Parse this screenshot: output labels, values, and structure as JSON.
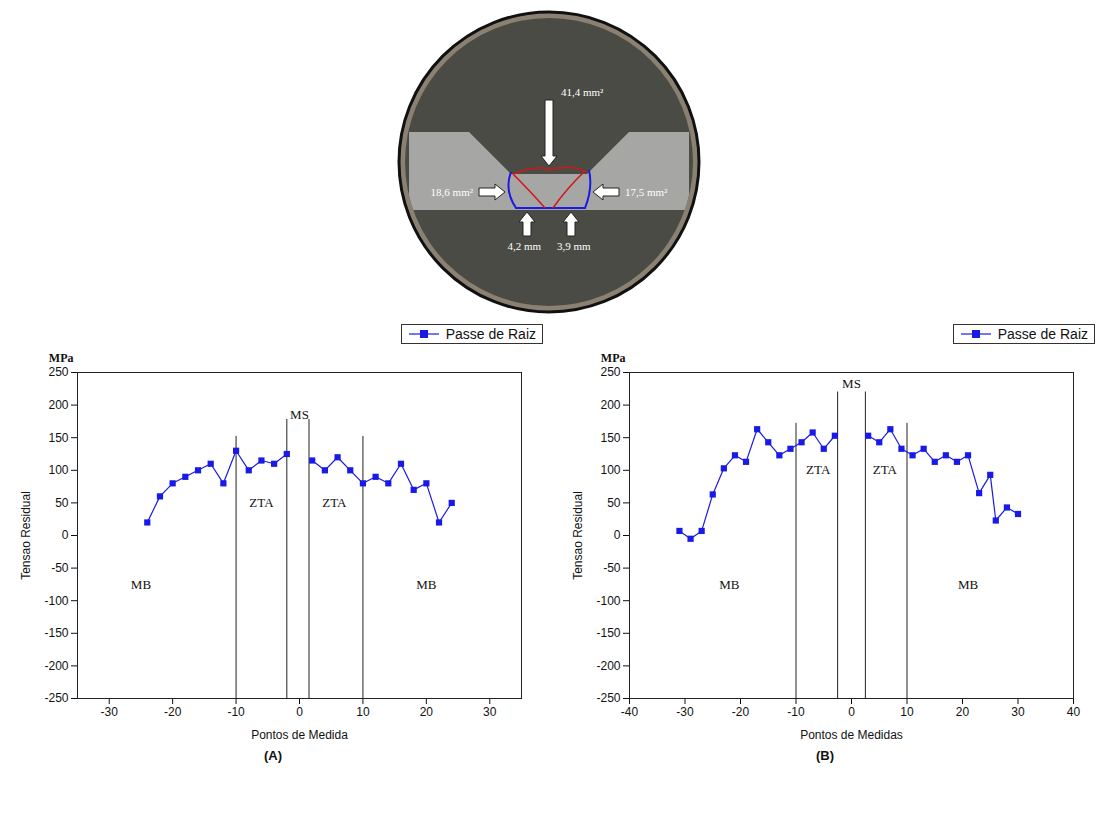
{
  "macrograph": {
    "top": "41,4 mm²",
    "left": "18,6 mm²",
    "right": "17,5 mm²",
    "bottom_left": "4,2 mm",
    "bottom_right": "3,9 mm"
  },
  "chart_data": [
    {
      "type": "line",
      "caption": "(A)",
      "x_label": "Pontos de Medida",
      "y_label": "Tensao Residual",
      "y_unit": "MPa",
      "xlim": [
        -35,
        35
      ],
      "xticks": [
        -30,
        -20,
        -10,
        0,
        10,
        20,
        30
      ],
      "ylim": [
        -250,
        250
      ],
      "yticks": [
        -250,
        -200,
        -150,
        -100,
        -50,
        0,
        50,
        100,
        150,
        200,
        250
      ],
      "grid": false,
      "legend": "top-right",
      "x": [
        -24,
        -22,
        -20,
        -18,
        -16,
        -14,
        -12,
        -10,
        -8,
        -6,
        -4,
        -2,
        0,
        2,
        4,
        6,
        8,
        10,
        12,
        14,
        16,
        18,
        20,
        22,
        24
      ],
      "series": [
        {
          "name": "Passe de Raiz",
          "color": "#1a1ae6",
          "marker": "square",
          "line_style": "solid",
          "values": [
            20,
            60,
            80,
            90,
            100,
            110,
            80,
            130,
            100,
            115,
            110,
            125,
            null,
            115,
            100,
            120,
            100,
            80,
            90,
            80,
            110,
            70,
            80,
            20,
            50
          ]
        }
      ],
      "region_lines": [
        {
          "x": -10,
          "top": 152
        },
        {
          "x": -2,
          "top": 178
        },
        {
          "x": 1.5,
          "top": 178
        },
        {
          "x": 10,
          "top": 152
        }
      ],
      "annotations": [
        {
          "text": "MB",
          "x": -25,
          "y": -75
        },
        {
          "text": "ZTA",
          "x": -6,
          "y": 50
        },
        {
          "text": "MS",
          "x": 0,
          "y": 185
        },
        {
          "text": "ZTA",
          "x": 5.5,
          "y": 50
        },
        {
          "text": "MB",
          "x": 20,
          "y": -75
        }
      ]
    },
    {
      "type": "line",
      "caption": "(B)",
      "x_label": "Pontos de Medidas",
      "y_label": "Tensao Residual",
      "y_unit": "MPa",
      "xlim": [
        -40,
        40
      ],
      "xticks": [
        -40,
        -30,
        -20,
        -10,
        0,
        10,
        20,
        30,
        40
      ],
      "ylim": [
        -250,
        250
      ],
      "yticks": [
        -250,
        -200,
        -150,
        -100,
        -50,
        0,
        50,
        100,
        150,
        200,
        250
      ],
      "grid": false,
      "legend": "top-right",
      "x": [
        -31,
        -29,
        -27,
        -25,
        -23,
        -21,
        -19,
        -17,
        -15,
        -13,
        -11,
        -9,
        -7,
        -5,
        -3,
        0,
        3,
        5,
        7,
        9,
        11,
        13,
        15,
        17,
        19,
        21,
        23,
        25,
        26,
        28,
        30
      ],
      "series": [
        {
          "name": "Passe de Raiz",
          "color": "#1a1ae6",
          "marker": "square",
          "line_style": "solid",
          "values": [
            7,
            -5,
            7,
            63,
            103,
            123,
            113,
            163,
            143,
            123,
            133,
            143,
            158,
            133,
            153,
            null,
            153,
            143,
            163,
            133,
            123,
            133,
            113,
            123,
            113,
            123,
            65,
            93,
            23,
            43,
            33
          ]
        }
      ],
      "region_lines": [
        {
          "x": -10,
          "top": 172
        },
        {
          "x": -2.5,
          "top": 220
        },
        {
          "x": 2.5,
          "top": 220
        },
        {
          "x": 10,
          "top": 172
        }
      ],
      "annotations": [
        {
          "text": "MB",
          "x": -22,
          "y": -75
        },
        {
          "text": "ZTA",
          "x": -6,
          "y": 100
        },
        {
          "text": "MS",
          "x": 0,
          "y": 232
        },
        {
          "text": "ZTA",
          "x": 6,
          "y": 100
        },
        {
          "text": "MB",
          "x": 21,
          "y": -75
        }
      ]
    }
  ]
}
